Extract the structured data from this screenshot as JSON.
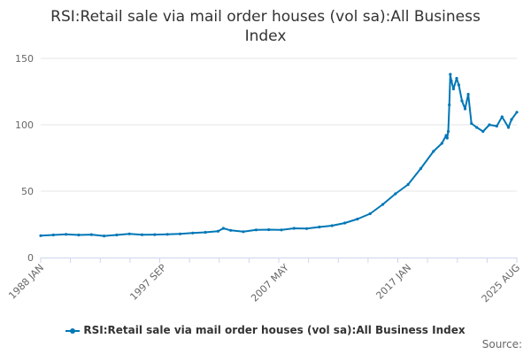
{
  "chart_data": {
    "type": "line",
    "title": "RSI:Retail sale via mail order houses (vol sa):All Business Index",
    "xlabel": "",
    "ylabel": "",
    "ylim": [
      0,
      150
    ],
    "yticks": [
      0,
      50,
      100,
      150
    ],
    "xrange": [
      "1988-01",
      "2025-08"
    ],
    "xtick_labels": [
      {
        "date": "1988-01",
        "label": "1988 JAN"
      },
      {
        "date": "1997-09",
        "label": "1997 SEP"
      },
      {
        "date": "2007-05",
        "label": "2007 MAY"
      },
      {
        "date": "2017-01",
        "label": "2017 JAN"
      },
      {
        "date": "2025-08",
        "label": "2025 AUG"
      }
    ],
    "grid": true,
    "legend_position": "bottom",
    "color": "#0077b6",
    "series": [
      {
        "name": "RSI:Retail sale via mail order houses (vol sa):All Business Index",
        "points": [
          {
            "x": "1988-01",
            "y": 16.5
          },
          {
            "x": "1989-01",
            "y": 17.0
          },
          {
            "x": "1990-01",
            "y": 17.5
          },
          {
            "x": "1991-01",
            "y": 17.0
          },
          {
            "x": "1992-01",
            "y": 17.3
          },
          {
            "x": "1993-01",
            "y": 16.3
          },
          {
            "x": "1994-01",
            "y": 17.0
          },
          {
            "x": "1995-01",
            "y": 17.8
          },
          {
            "x": "1996-01",
            "y": 17.2
          },
          {
            "x": "1997-01",
            "y": 17.3
          },
          {
            "x": "1998-01",
            "y": 17.5
          },
          {
            "x": "1999-01",
            "y": 17.8
          },
          {
            "x": "2000-01",
            "y": 18.5
          },
          {
            "x": "2001-01",
            "y": 19.0
          },
          {
            "x": "2002-01",
            "y": 19.8
          },
          {
            "x": "2002-06",
            "y": 22.0
          },
          {
            "x": "2003-01",
            "y": 20.5
          },
          {
            "x": "2004-01",
            "y": 19.5
          },
          {
            "x": "2005-01",
            "y": 20.8
          },
          {
            "x": "2006-01",
            "y": 21.0
          },
          {
            "x": "2007-01",
            "y": 20.8
          },
          {
            "x": "2008-01",
            "y": 22.0
          },
          {
            "x": "2009-01",
            "y": 21.8
          },
          {
            "x": "2010-01",
            "y": 23.0
          },
          {
            "x": "2011-01",
            "y": 24.0
          },
          {
            "x": "2012-01",
            "y": 26.0
          },
          {
            "x": "2013-01",
            "y": 29.0
          },
          {
            "x": "2014-01",
            "y": 33.0
          },
          {
            "x": "2015-01",
            "y": 40.0
          },
          {
            "x": "2016-01",
            "y": 48.0
          },
          {
            "x": "2017-01",
            "y": 55.0
          },
          {
            "x": "2018-01",
            "y": 67.0
          },
          {
            "x": "2019-01",
            "y": 80.0
          },
          {
            "x": "2019-09",
            "y": 86.0
          },
          {
            "x": "2020-01",
            "y": 92.0
          },
          {
            "x": "2020-02",
            "y": 90.0
          },
          {
            "x": "2020-03",
            "y": 95.0
          },
          {
            "x": "2020-04",
            "y": 115.0
          },
          {
            "x": "2020-05",
            "y": 138.0
          },
          {
            "x": "2020-06",
            "y": 133.0
          },
          {
            "x": "2020-08",
            "y": 127.0
          },
          {
            "x": "2020-11",
            "y": 135.0
          },
          {
            "x": "2021-01",
            "y": 130.0
          },
          {
            "x": "2021-04",
            "y": 118.0
          },
          {
            "x": "2021-07",
            "y": 112.0
          },
          {
            "x": "2021-10",
            "y": 123.0
          },
          {
            "x": "2022-01",
            "y": 101.0
          },
          {
            "x": "2022-06",
            "y": 98.0
          },
          {
            "x": "2022-12",
            "y": 95.0
          },
          {
            "x": "2023-06",
            "y": 100.0
          },
          {
            "x": "2024-01",
            "y": 99.0
          },
          {
            "x": "2024-06",
            "y": 106.0
          },
          {
            "x": "2024-12",
            "y": 98.0
          },
          {
            "x": "2025-03",
            "y": 104.0
          },
          {
            "x": "2025-08",
            "y": 109.5
          }
        ]
      }
    ]
  },
  "credits": "Source:"
}
